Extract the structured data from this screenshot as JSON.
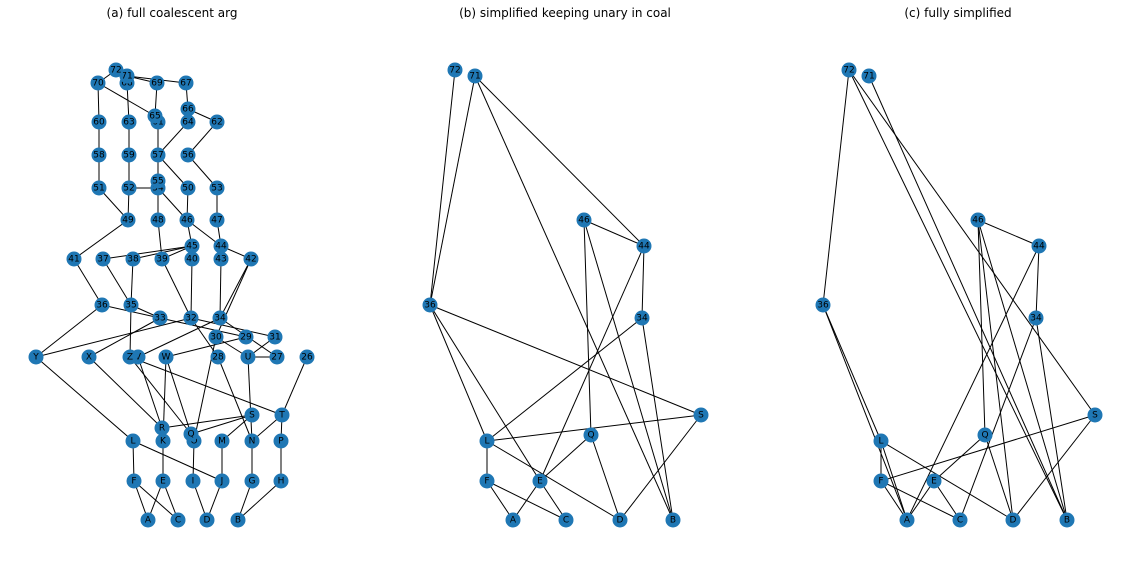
{
  "panels": [
    {
      "title": "(a) full coalescent arg",
      "nodes": [
        "A",
        "B",
        "C",
        "D",
        "E",
        "F",
        "G",
        "H",
        "I",
        "J",
        "K",
        "L",
        "M",
        "N",
        "O",
        "P",
        "Q",
        "R",
        "S",
        "T",
        "U",
        "V",
        "W",
        "X",
        "Y",
        "Z",
        "26",
        "27",
        "28",
        "29",
        "30",
        "31",
        "32",
        "33",
        "34",
        "35",
        "36",
        "37",
        "38",
        "39",
        "40",
        "41",
        "42",
        "43",
        "44",
        "45",
        "46",
        "47",
        "48",
        "49",
        "50",
        "51",
        "52",
        "53",
        "54",
        "55",
        "56",
        "57",
        "58",
        "59",
        "60",
        "61",
        "62",
        "63",
        "64",
        "65",
        "66",
        "67",
        "68",
        "69",
        "70",
        "71",
        "72"
      ],
      "edges": [
        [
          "F",
          "A"
        ],
        [
          "F",
          "C"
        ],
        [
          "E",
          "A"
        ],
        [
          "E",
          "C"
        ],
        [
          "I",
          "D"
        ],
        [
          "J",
          "D"
        ],
        [
          "G",
          "B"
        ],
        [
          "H",
          "B"
        ],
        [
          "L",
          "F"
        ],
        [
          "L",
          "J"
        ],
        [
          "K",
          "E"
        ],
        [
          "O",
          "I"
        ],
        [
          "M",
          "J"
        ],
        [
          "N",
          "G"
        ],
        [
          "P",
          "H"
        ],
        [
          "R",
          "K"
        ],
        [
          "R",
          "S"
        ],
        [
          "S",
          "M"
        ],
        [
          "T",
          "N"
        ],
        [
          "T",
          "P"
        ],
        [
          "Q",
          "S"
        ],
        [
          "Q",
          "W"
        ],
        [
          "Y",
          "L"
        ],
        [
          "X",
          "R"
        ],
        [
          "Z",
          "Q"
        ],
        [
          "Z",
          "T"
        ],
        [
          "V",
          "R"
        ],
        [
          "W",
          "K"
        ],
        [
          "U",
          "N"
        ],
        [
          "27",
          "U"
        ],
        [
          "26",
          "T"
        ],
        [
          "28",
          "N"
        ],
        [
          "29",
          "W"
        ],
        [
          "30",
          "O"
        ],
        [
          "30",
          "U"
        ],
        [
          "31",
          "U"
        ],
        [
          "36",
          "Y"
        ],
        [
          "36",
          "33"
        ],
        [
          "33",
          "X"
        ],
        [
          "33",
          "29"
        ],
        [
          "32",
          "Y"
        ],
        [
          "32",
          "28"
        ],
        [
          "32",
          "31"
        ],
        [
          "34",
          "27"
        ],
        [
          "34",
          "V"
        ],
        [
          "35",
          "33"
        ],
        [
          "35",
          "Z"
        ],
        [
          "41",
          "36"
        ],
        [
          "37",
          "35"
        ],
        [
          "38",
          "35"
        ],
        [
          "39",
          "32"
        ],
        [
          "40",
          "32"
        ],
        [
          "43",
          "34"
        ],
        [
          "42",
          "34"
        ],
        [
          "42",
          "30"
        ],
        [
          "45",
          "38"
        ],
        [
          "45",
          "39"
        ],
        [
          "45",
          "37"
        ],
        [
          "44",
          "43"
        ],
        [
          "44",
          "42"
        ],
        [
          "49",
          "41"
        ],
        [
          "46",
          "45"
        ],
        [
          "46",
          "44"
        ],
        [
          "48",
          "39"
        ],
        [
          "47",
          "44"
        ],
        [
          "51",
          "49"
        ],
        [
          "52",
          "49"
        ],
        [
          "52",
          "54"
        ],
        [
          "54",
          "46"
        ],
        [
          "50",
          "46"
        ],
        [
          "53",
          "47"
        ],
        [
          "55",
          "48"
        ],
        [
          "58",
          "51"
        ],
        [
          "59",
          "52"
        ],
        [
          "57",
          "55"
        ],
        [
          "57",
          "50"
        ],
        [
          "56",
          "53"
        ],
        [
          "60",
          "58"
        ],
        [
          "63",
          "59"
        ],
        [
          "61",
          "57"
        ],
        [
          "64",
          "57"
        ],
        [
          "62",
          "56"
        ],
        [
          "70",
          "60"
        ],
        [
          "70",
          "65"
        ],
        [
          "68",
          "63"
        ],
        [
          "65",
          "61"
        ],
        [
          "66",
          "64"
        ],
        [
          "66",
          "62"
        ],
        [
          "67",
          "66"
        ],
        [
          "69",
          "65"
        ],
        [
          "72",
          "70"
        ],
        [
          "72",
          "68"
        ],
        [
          "71",
          "69"
        ],
        [
          "71",
          "67"
        ],
        [
          "72",
          "71"
        ]
      ]
    },
    {
      "title": "(b) simplified keeping unary in coal",
      "nodes": [
        "A",
        "B",
        "C",
        "D",
        "E",
        "F",
        "L",
        "Q",
        "S",
        "34",
        "36",
        "44",
        "46",
        "71",
        "72"
      ],
      "edges": [
        [
          "F",
          "A"
        ],
        [
          "F",
          "C"
        ],
        [
          "E",
          "A"
        ],
        [
          "E",
          "C"
        ],
        [
          "L",
          "F"
        ],
        [
          "L",
          "D"
        ],
        [
          "L",
          "S"
        ],
        [
          "Q",
          "E"
        ],
        [
          "Q",
          "D"
        ],
        [
          "S",
          "D"
        ],
        [
          "34",
          "L"
        ],
        [
          "34",
          "B"
        ],
        [
          "36",
          "L"
        ],
        [
          "36",
          "E"
        ],
        [
          "36",
          "S"
        ],
        [
          "44",
          "34"
        ],
        [
          "44",
          "E"
        ],
        [
          "46",
          "44"
        ],
        [
          "46",
          "Q"
        ],
        [
          "46",
          "B"
        ],
        [
          "72",
          "36"
        ],
        [
          "71",
          "36"
        ],
        [
          "71",
          "44"
        ],
        [
          "71",
          "B"
        ]
      ]
    },
    {
      "title": "(c) fully simplified",
      "nodes": [
        "A",
        "B",
        "C",
        "D",
        "E",
        "F",
        "L",
        "Q",
        "S",
        "34",
        "36",
        "44",
        "46",
        "71",
        "72"
      ],
      "edges": [
        [
          "F",
          "A"
        ],
        [
          "F",
          "C"
        ],
        [
          "E",
          "A"
        ],
        [
          "E",
          "C"
        ],
        [
          "L",
          "F"
        ],
        [
          "L",
          "D"
        ],
        [
          "L",
          "A"
        ],
        [
          "Q",
          "E"
        ],
        [
          "Q",
          "D"
        ],
        [
          "F",
          "S"
        ],
        [
          "S",
          "D"
        ],
        [
          "36",
          "L"
        ],
        [
          "36",
          "A"
        ],
        [
          "34",
          "C"
        ],
        [
          "34",
          "B"
        ],
        [
          "44",
          "34"
        ],
        [
          "44",
          "A"
        ],
        [
          "46",
          "44"
        ],
        [
          "46",
          "Q"
        ],
        [
          "46",
          "B"
        ],
        [
          "46",
          "D"
        ],
        [
          "72",
          "36"
        ],
        [
          "72",
          "B"
        ],
        [
          "71",
          "B"
        ],
        [
          "72",
          "S"
        ]
      ]
    }
  ]
}
